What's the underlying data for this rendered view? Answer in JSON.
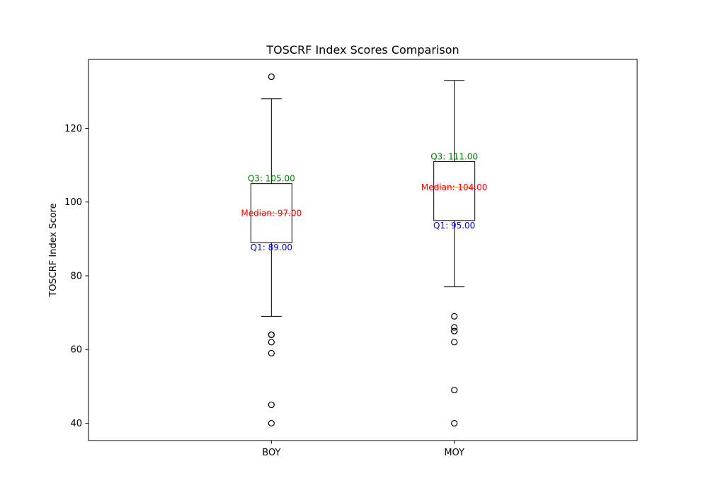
{
  "chart_data": {
    "type": "box",
    "title": "TOSCRF Index Scores Comparison",
    "xlabel": "",
    "ylabel": "TOSCRF Index Score",
    "categories": [
      "BOY",
      "MOY"
    ],
    "ylim": [
      35.3,
      138.7
    ],
    "yticks": [
      40,
      60,
      80,
      100,
      120
    ],
    "grid": false,
    "boxes": [
      {
        "name": "BOY",
        "whisker_low": 69,
        "q1": 89,
        "median": 97,
        "q3": 105,
        "whisker_high": 128,
        "outliers": [
          134,
          64,
          64,
          62,
          59,
          45,
          40
        ],
        "q1_label": "Q1: 89.00",
        "median_label": "Median: 97.00",
        "q3_label": "Q3: 105.00"
      },
      {
        "name": "MOY",
        "whisker_low": 77,
        "q1": 95,
        "median": 104,
        "q3": 111,
        "whisker_high": 133,
        "outliers": [
          69,
          66,
          65,
          65,
          62,
          49,
          40
        ],
        "q1_label": "Q1: 95.00",
        "median_label": "Median: 104.00",
        "q3_label": "Q3: 111.00"
      }
    ],
    "colors": {
      "q1_label": "#0000ff",
      "median_label": "#ff0000",
      "q3_label": "#008000",
      "median_line": "#ff7f0e",
      "box": "#000000"
    }
  }
}
